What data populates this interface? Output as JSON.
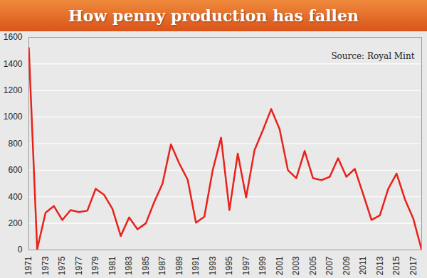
{
  "chart_data": {
    "type": "line",
    "title": "How penny production has fallen",
    "annotations": [
      "Source: Royal Mint"
    ],
    "x": [
      1971,
      1972,
      1973,
      1974,
      1975,
      1976,
      1977,
      1978,
      1979,
      1980,
      1981,
      1982,
      1983,
      1984,
      1985,
      1986,
      1987,
      1988,
      1989,
      1990,
      1991,
      1992,
      1993,
      1994,
      1995,
      1996,
      1997,
      1998,
      1999,
      2000,
      2001,
      2002,
      2003,
      2004,
      2005,
      2006,
      2007,
      2008,
      2009,
      2010,
      2011,
      2012,
      2013,
      2014,
      2015,
      2016,
      2017,
      2018
    ],
    "values": [
      1520,
      5,
      280,
      330,
      225,
      300,
      285,
      295,
      460,
      415,
      310,
      105,
      245,
      155,
      200,
      360,
      500,
      795,
      650,
      530,
      205,
      250,
      600,
      845,
      300,
      725,
      395,
      750,
      900,
      1060,
      910,
      600,
      540,
      745,
      540,
      525,
      550,
      690,
      550,
      610,
      420,
      225,
      260,
      460,
      575,
      380,
      235,
      0
    ],
    "color": "#e8221b",
    "xlim": [
      1971,
      2018
    ],
    "xticks": [
      1971,
      1973,
      1975,
      1977,
      1979,
      1981,
      1983,
      1985,
      1987,
      1989,
      1991,
      1993,
      1995,
      1997,
      1999,
      2001,
      2003,
      2005,
      2007,
      2009,
      2011,
      2013,
      2015,
      2017
    ],
    "ylim": [
      0,
      1600
    ],
    "yticks": [
      0,
      200,
      400,
      600,
      800,
      1000,
      1200,
      1400,
      1600
    ],
    "grid": true
  }
}
